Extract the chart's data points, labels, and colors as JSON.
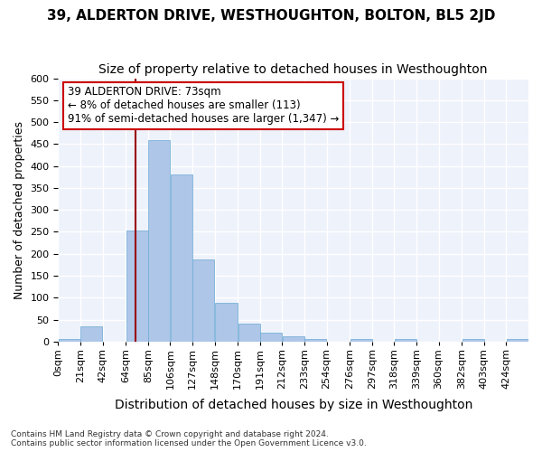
{
  "title": "39, ALDERTON DRIVE, WESTHOUGHTON, BOLTON, BL5 2JD",
  "subtitle": "Size of property relative to detached houses in Westhoughton",
  "xlabel": "Distribution of detached houses by size in Westhoughton",
  "ylabel": "Number of detached properties",
  "bin_labels": [
    "0sqm",
    "21sqm",
    "42sqm",
    "64sqm",
    "85sqm",
    "106sqm",
    "127sqm",
    "148sqm",
    "170sqm",
    "191sqm",
    "212sqm",
    "233sqm",
    "254sqm",
    "276sqm",
    "297sqm",
    "318sqm",
    "339sqm",
    "360sqm",
    "382sqm",
    "403sqm",
    "424sqm"
  ],
  "bar_values": [
    5,
    35,
    0,
    253,
    460,
    380,
    188,
    88,
    40,
    20,
    11,
    6,
    0,
    6,
    0,
    5,
    0,
    0,
    5,
    0,
    5
  ],
  "bar_color": "#aec6e8",
  "bar_edge_color": "#6aaad4",
  "bg_color": "#eef2fb",
  "grid_color": "#ffffff",
  "vline_x": 73,
  "bin_edges": [
    0,
    21,
    42,
    64,
    85,
    106,
    127,
    148,
    170,
    191,
    212,
    233,
    254,
    276,
    297,
    318,
    339,
    360,
    382,
    403,
    424,
    445
  ],
  "annotation_text": "39 ALDERTON DRIVE: 73sqm\n← 8% of detached houses are smaller (113)\n91% of semi-detached houses are larger (1,347) →",
  "annotation_box_color": "#ffffff",
  "annotation_border_color": "#cc0000",
  "ylim": [
    0,
    600
  ],
  "footnote": "Contains HM Land Registry data © Crown copyright and database right 2024.\nContains public sector information licensed under the Open Government Licence v3.0.",
  "title_fontsize": 11,
  "subtitle_fontsize": 10,
  "xlabel_fontsize": 10,
  "ylabel_fontsize": 9,
  "tick_fontsize": 8,
  "annotation_fontsize": 8.5
}
